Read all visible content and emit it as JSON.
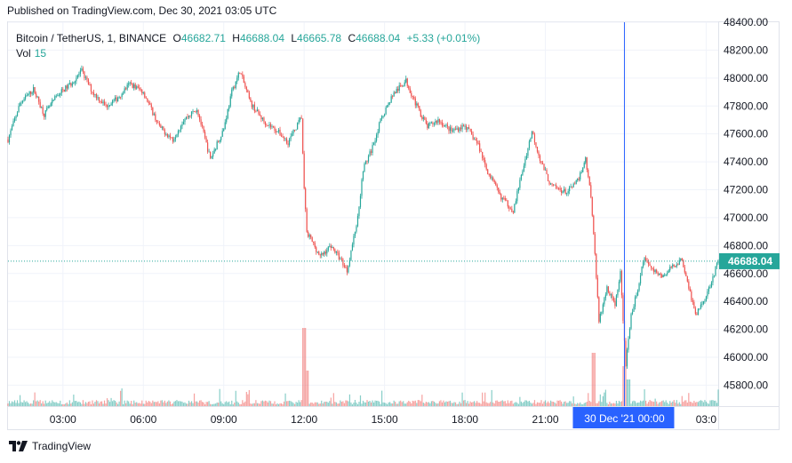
{
  "published": "Published on TradingView.com, Dec 30, 2021 03:05 UTC",
  "legend": {
    "symbol": "Bitcoin / TetherUS, 1, BINANCE",
    "open_label": "O",
    "open": "46682.71",
    "high_label": "H",
    "high": "46688.04",
    "low_label": "L",
    "low": "46665.78",
    "close_label": "C",
    "close": "46688.04",
    "change": "+5.33 (+0.01%)",
    "vol_label": "Vol",
    "vol": "15"
  },
  "footer": {
    "brand": "TradingView",
    "logo_icon": "tradingview-logo-icon"
  },
  "colors": {
    "up": "#26a69a",
    "down": "#ef5350",
    "crosshair": "#2962ff",
    "badge": "#2962ff",
    "price_line": "#26a69a",
    "grid": "#f0f3fa"
  },
  "chart_data": {
    "type": "candlestick",
    "title": "Bitcoin / TetherUS, 1, BINANCE",
    "ylim": [
      45650,
      48400
    ],
    "y_ticks": [
      "48400.00",
      "48200.00",
      "48000.00",
      "47800.00",
      "47600.00",
      "47400.00",
      "47200.00",
      "47000.00",
      "46800.00",
      "46600.00",
      "46400.00",
      "46200.00",
      "46000.00",
      "45800.00"
    ],
    "y_tick_values": [
      48400,
      48200,
      48000,
      47800,
      47600,
      47400,
      47200,
      47000,
      46800,
      46600,
      46400,
      46200,
      46000,
      45800
    ],
    "x_ticks": [
      "03:00",
      "06:00",
      "09:00",
      "12:00",
      "15:00",
      "18:00",
      "21:00",
      "00:00",
      "03:0"
    ],
    "x_tick_hours": [
      3,
      6,
      9,
      12,
      15,
      18,
      21,
      24,
      27
    ],
    "x_range_hours": [
      0.95,
      27.45
    ],
    "last_price": "46688.04",
    "last_price_value": 46688.04,
    "crosshair_hour": 23.95,
    "crosshair_label": "30 Dec '21   00:00",
    "path_hours": [
      0.95,
      1.4,
      1.9,
      2.3,
      2.8,
      3.3,
      3.7,
      4.1,
      4.6,
      5.0,
      5.5,
      6.0,
      6.6,
      7.1,
      7.5,
      8.0,
      8.5,
      9.0,
      9.3,
      9.6,
      10.0,
      10.5,
      11.0,
      11.4,
      11.9,
      12.0,
      12.1,
      12.6,
      13.0,
      13.4,
      13.6,
      14.0,
      14.2,
      14.5,
      14.9,
      15.3,
      15.8,
      16.2,
      16.6,
      17.0,
      17.5,
      18.0,
      18.5,
      18.8,
      19.3,
      19.8,
      20.2,
      20.5,
      20.8,
      21.2,
      21.8,
      22.2,
      22.5,
      22.7,
      22.8,
      23.0,
      23.3,
      23.6,
      23.8,
      24.0,
      24.2,
      24.4,
      24.7,
      25.0,
      25.4,
      25.8,
      26.1,
      26.3,
      26.6,
      27.0,
      27.45
    ],
    "path_prices": [
      47560,
      47820,
      47920,
      47740,
      47880,
      47960,
      48050,
      47900,
      47800,
      47850,
      47960,
      47900,
      47650,
      47560,
      47700,
      47780,
      47420,
      47640,
      47900,
      48050,
      47820,
      47690,
      47620,
      47540,
      47720,
      47200,
      46900,
      46720,
      46800,
      46690,
      46620,
      47000,
      47350,
      47480,
      47720,
      47880,
      47980,
      47800,
      47650,
      47700,
      47620,
      47660,
      47520,
      47350,
      47160,
      47050,
      47380,
      47620,
      47420,
      47230,
      47180,
      47260,
      47420,
      47160,
      46900,
      46250,
      46500,
      46380,
      46600,
      45950,
      46300,
      46450,
      46720,
      46620,
      46580,
      46660,
      46700,
      46550,
      46300,
      46440,
      46688
    ]
  }
}
